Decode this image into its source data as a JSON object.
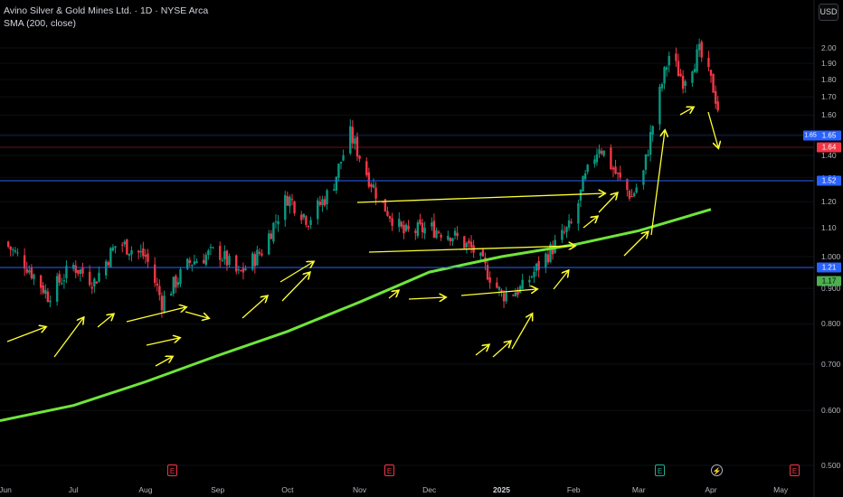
{
  "legend": {
    "title": "Avino Silver & Gold Mines Ltd. · 1D · NYSE Arca",
    "indicator": "SMA (200, close)"
  },
  "currency": "USD",
  "y_axis_ticks": [
    "2.00",
    "1.90",
    "1.80",
    "1.70",
    "1.60",
    "1.50",
    "1.40",
    "1.30",
    "1.20",
    "1.10",
    "1.000",
    "0.900",
    "0.800",
    "0.700",
    "0.600",
    "0.500"
  ],
  "x_axis_ticks": [
    {
      "label": "Jun",
      "bold": false
    },
    {
      "label": "Jul",
      "bold": false
    },
    {
      "label": "Aug",
      "bold": false
    },
    {
      "label": "Sep",
      "bold": false
    },
    {
      "label": "Oct",
      "bold": false
    },
    {
      "label": "Nov",
      "bold": false
    },
    {
      "label": "Dec",
      "bold": false
    },
    {
      "label": "2025",
      "bold": true
    },
    {
      "label": "Feb",
      "bold": false
    },
    {
      "label": "Mar",
      "bold": false
    },
    {
      "label": "Apr",
      "bold": false
    },
    {
      "label": "May",
      "bold": false
    }
  ],
  "price_labels": {
    "hline_top": "1.52",
    "hline_bottom": "1.21",
    "current": "1.64",
    "sma": "1.17",
    "overlap": "1.65"
  },
  "events": [
    {
      "symbol": "E",
      "type": "earnings",
      "color": "red"
    },
    {
      "symbol": "E",
      "type": "earnings",
      "color": "red"
    },
    {
      "symbol": "E",
      "type": "earnings",
      "color": "green"
    },
    {
      "symbol": "⚡",
      "type": "dividend",
      "color": "gray"
    },
    {
      "symbol": "E",
      "type": "earnings",
      "color": "red"
    }
  ],
  "colors": {
    "background": "#000000",
    "up": "#089981",
    "down": "#f23645",
    "sma": "#6fe53a",
    "hline": "#2962ff",
    "arrow": "#ffff33"
  },
  "chart_data": {
    "type": "candlestick",
    "title": "Avino Silver & Gold Mines Ltd. · 1D · NYSE Arca",
    "y_scale": "log",
    "ylim": [
      0.5,
      2.1
    ],
    "x_range": [
      "2024-06",
      "2025-05"
    ],
    "horizontal_levels": [
      1.52,
      1.21
    ],
    "last_price": 1.64,
    "series": [
      {
        "name": "SMA (200, close)",
        "x": [
          "2024-06-01",
          "2024-07-01",
          "2024-08-01",
          "2024-09-01",
          "2024-10-01",
          "2024-11-01",
          "2024-12-01",
          "2025-01-01",
          "2025-02-01",
          "2025-03-01",
          "2025-04-01"
        ],
        "values": [
          0.58,
          0.61,
          0.66,
          0.72,
          0.78,
          0.86,
          0.95,
          1.0,
          1.04,
          1.09,
          1.17
        ]
      }
    ],
    "close_path": [
      [
        "2024-06-01",
        1.05
      ],
      [
        "2024-06-10",
        0.98
      ],
      [
        "2024-06-20",
        0.88
      ],
      [
        "2024-07-01",
        0.97
      ],
      [
        "2024-07-10",
        0.92
      ],
      [
        "2024-07-20",
        1.05
      ],
      [
        "2024-08-01",
        1.0
      ],
      [
        "2024-08-08",
        0.86
      ],
      [
        "2024-08-20",
        0.98
      ],
      [
        "2024-09-01",
        1.02
      ],
      [
        "2024-09-10",
        0.94
      ],
      [
        "2024-09-20",
        1.02
      ],
      [
        "2024-10-01",
        1.22
      ],
      [
        "2024-10-10",
        1.13
      ],
      [
        "2024-10-20",
        1.25
      ],
      [
        "2024-10-28",
        1.5
      ],
      [
        "2024-11-04",
        1.32
      ],
      [
        "2024-11-10",
        1.2
      ],
      [
        "2024-11-20",
        1.08
      ],
      [
        "2024-12-01",
        1.1
      ],
      [
        "2024-12-10",
        1.08
      ],
      [
        "2024-12-20",
        1.02
      ],
      [
        "2025-01-01",
        0.88
      ],
      [
        "2025-01-10",
        0.9
      ],
      [
        "2025-01-20",
        1.0
      ],
      [
        "2025-02-01",
        1.12
      ],
      [
        "2025-02-05",
        1.27
      ],
      [
        "2025-02-12",
        1.45
      ],
      [
        "2025-02-20",
        1.3
      ],
      [
        "2025-02-26",
        1.22
      ],
      [
        "2025-03-03",
        1.32
      ],
      [
        "2025-03-10",
        1.72
      ],
      [
        "2025-03-14",
        1.95
      ],
      [
        "2025-03-20",
        1.8
      ],
      [
        "2025-03-27",
        1.97
      ],
      [
        "2025-04-02",
        1.75
      ],
      [
        "2025-04-04",
        1.64
      ]
    ],
    "annotations": "yellow hand-drawn arrows tracing swing moves"
  }
}
